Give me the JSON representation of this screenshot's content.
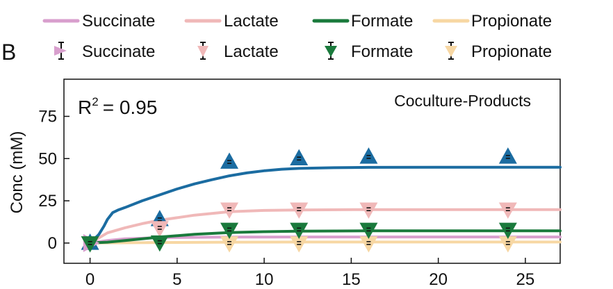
{
  "panel_label": "B",
  "legend": {
    "lines": [
      {
        "label": "Succinate",
        "color": "#d89fcd"
      },
      {
        "label": "Lactate",
        "color": "#f0b8b8"
      },
      {
        "label": "Formate",
        "color": "#1a7a3c"
      },
      {
        "label": "Propionate",
        "color": "#f7d7a3"
      }
    ],
    "markers": [
      {
        "label": "Succinate",
        "color": "#d89fcd",
        "shape": "triangle-right"
      },
      {
        "label": "Lactate",
        "color": "#f0b8b8",
        "shape": "triangle-down"
      },
      {
        "label": "Formate",
        "color": "#1a7a3c",
        "shape": "triangle-down"
      },
      {
        "label": "Propionate",
        "color": "#f7d7a3",
        "shape": "triangle-down"
      }
    ]
  },
  "chart_data": {
    "type": "scatter",
    "title": "",
    "annotations": {
      "r2_base": "R",
      "r2_exp": "2",
      "r2_rest": "= 0.95",
      "panel_title": "Coculture-Products"
    },
    "xlabel": "",
    "ylabel": "Conc (mM)",
    "xlim": [
      -1.5,
      27
    ],
    "ylim": [
      -12,
      97
    ],
    "xticks": [
      0,
      5,
      10,
      15,
      20,
      25
    ],
    "yticks": [
      0,
      25,
      50,
      75
    ],
    "grid": false,
    "legend_position": "top",
    "series": [
      {
        "name": "Succinate",
        "kind": "line",
        "color": "#d89fcd",
        "x": [
          0,
          1,
          2,
          4,
          8,
          12,
          16,
          24,
          27
        ],
        "y": [
          0,
          1.5,
          2.5,
          3.2,
          3.5,
          3.6,
          3.6,
          3.6,
          3.6
        ]
      },
      {
        "name": "Lactate",
        "kind": "line",
        "color": "#f0b8b8",
        "x": [
          0,
          0.5,
          1,
          2,
          3,
          4,
          6,
          8,
          10,
          12,
          16,
          20,
          24,
          27
        ],
        "y": [
          0,
          3,
          6,
          9,
          11.5,
          13.5,
          16.5,
          18.5,
          19.3,
          19.6,
          19.8,
          19.8,
          19.8,
          19.8
        ]
      },
      {
        "name": "Formate",
        "kind": "line",
        "color": "#1a7a3c",
        "x": [
          0,
          1,
          2,
          4,
          6,
          8,
          10,
          12,
          16,
          20,
          24,
          27
        ],
        "y": [
          0,
          0.5,
          1.5,
          3.5,
          5.2,
          6.2,
          6.7,
          7,
          7.2,
          7.2,
          7.2,
          7.2
        ]
      },
      {
        "name": "Propionate",
        "kind": "line",
        "color": "#f7d7a3",
        "x": [
          0,
          4,
          8,
          12,
          16,
          20,
          24,
          27
        ],
        "y": [
          0,
          0.3,
          0.5,
          0.6,
          0.6,
          0.6,
          0.6,
          0.6
        ]
      },
      {
        "name": "",
        "kind": "line",
        "color": "#1b6ca1",
        "x": [
          0,
          0.5,
          0.8,
          1,
          1.3,
          1.6,
          2,
          3,
          4,
          5,
          6,
          7,
          8,
          9,
          10,
          11,
          12,
          14,
          16,
          20,
          24,
          27
        ],
        "y": [
          0,
          5,
          10,
          14,
          18,
          19.5,
          21,
          25,
          28.5,
          32,
          35,
          37.5,
          39.8,
          41.5,
          42.8,
          43.7,
          44.2,
          44.6,
          44.8,
          44.9,
          44.9,
          44.9
        ]
      },
      {
        "name": "Succinate",
        "kind": "points",
        "color": "#d89fcd",
        "marker": "triangle-right",
        "x": [
          0
        ],
        "y": [
          0
        ]
      },
      {
        "name": "Lactate",
        "kind": "points",
        "color": "#f0b8b8",
        "marker": "triangle-down",
        "x": [
          4,
          8,
          12,
          16,
          24
        ],
        "y": [
          9,
          20,
          20,
          20,
          20
        ]
      },
      {
        "name": "Formate",
        "kind": "points",
        "color": "#1a7a3c",
        "marker": "triangle-down",
        "x": [
          0,
          4,
          8,
          12,
          16,
          24
        ],
        "y": [
          0,
          0.5,
          8,
          8,
          8,
          8
        ]
      },
      {
        "name": "Propionate",
        "kind": "points",
        "color": "#f7d7a3",
        "marker": "triangle-down",
        "x": [
          8,
          12,
          16,
          24
        ],
        "y": [
          0,
          0,
          0,
          0
        ]
      },
      {
        "name": "",
        "kind": "points",
        "color": "#1b6ca1",
        "marker": "triangle-up",
        "x": [
          0,
          4,
          8,
          12,
          16,
          24
        ],
        "y": [
          0,
          14,
          48,
          50,
          51,
          51
        ]
      }
    ]
  }
}
